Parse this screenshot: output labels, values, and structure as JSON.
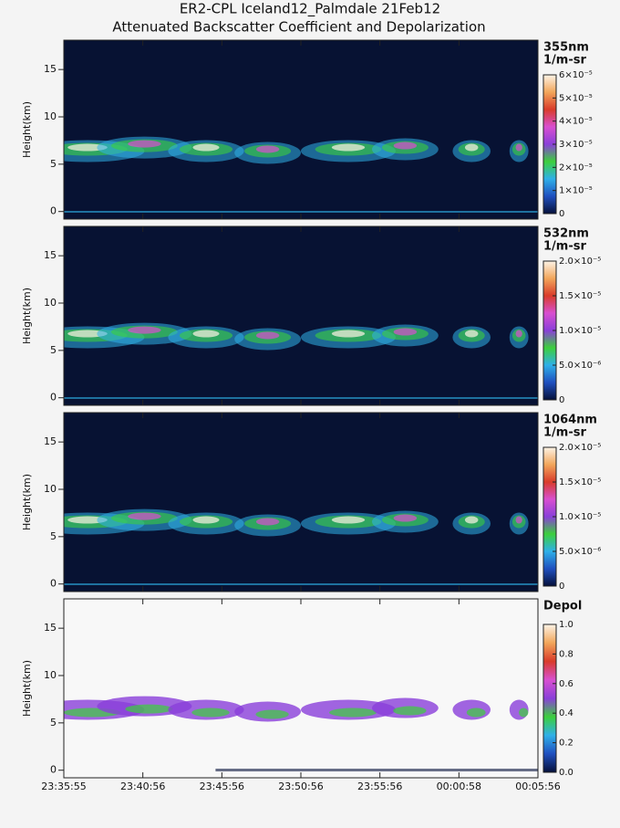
{
  "title": "ER2-CPL Iceland12_Palmdale 21Feb12",
  "subtitle": "Attenuated Backscatter Coefficient and Depolarization",
  "chart_data": [
    {
      "type": "heatmap",
      "ylabel": "Height(km)",
      "ylim": [
        -0.8,
        18.1
      ],
      "yticks": [
        0,
        5,
        10,
        15
      ],
      "colorbar_title": "355nm",
      "colorbar_units": "1/m-sr",
      "background": "#071233",
      "clim": [
        0,
        6e-05
      ],
      "cticks": [
        0,
        {
          "value": 1e-05,
          "label": "1×10⁻⁵"
        },
        {
          "value": 2e-05,
          "label": "2×10⁻⁵"
        },
        {
          "value": 3e-05,
          "label": "3×10⁻⁵"
        },
        {
          "value": 4e-05,
          "label": "4×10⁻⁵"
        },
        {
          "value": 5e-05,
          "label": "5×10⁻⁵"
        },
        {
          "value": 6e-05,
          "label": "6×10⁻⁵"
        }
      ],
      "colormap": [
        "#05103a",
        "#1f4fbf",
        "#2fb0e8",
        "#3ccf3c",
        "#8a3fd9",
        "#d84fd0",
        "#d93b2a",
        "#f2a65a",
        "#fdf3e6"
      ]
    },
    {
      "type": "heatmap",
      "ylabel": "Height(km)",
      "ylim": [
        -0.8,
        18.1
      ],
      "yticks": [
        0,
        5,
        10,
        15
      ],
      "colorbar_title": "532nm",
      "colorbar_units": "1/m-sr",
      "background": "#071233",
      "clim": [
        0,
        2e-05
      ],
      "cticks": [
        0,
        {
          "value": 5e-06,
          "label": "5.0×10⁻⁶"
        },
        {
          "value": 1e-05,
          "label": "1.0×10⁻⁵"
        },
        {
          "value": 1.5e-05,
          "label": "1.5×10⁻⁵"
        },
        {
          "value": 2e-05,
          "label": "2.0×10⁻⁵"
        }
      ],
      "colormap": [
        "#05103a",
        "#1f4fbf",
        "#2fb0e8",
        "#3ccf3c",
        "#8a3fd9",
        "#d84fd0",
        "#d93b2a",
        "#f2a65a",
        "#fdf3e6"
      ]
    },
    {
      "type": "heatmap",
      "ylabel": "Height(km)",
      "ylim": [
        -0.8,
        18.1
      ],
      "yticks": [
        0,
        5,
        10,
        15
      ],
      "colorbar_title": "1064nm",
      "colorbar_units": "1/m-sr",
      "background": "#071233",
      "clim": [
        0,
        2e-05
      ],
      "cticks": [
        0,
        {
          "value": 5e-06,
          "label": "5.0×10⁻⁶"
        },
        {
          "value": 1e-05,
          "label": "1.0×10⁻⁵"
        },
        {
          "value": 1.5e-05,
          "label": "1.5×10⁻⁵"
        },
        {
          "value": 2e-05,
          "label": "2.0×10⁻⁵"
        }
      ],
      "colormap": [
        "#05103a",
        "#1f4fbf",
        "#2fb0e8",
        "#3ccf3c",
        "#8a3fd9",
        "#d84fd0",
        "#d93b2a",
        "#f2a65a",
        "#fdf3e6"
      ]
    },
    {
      "type": "heatmap",
      "ylabel": "Height(km)",
      "ylim": [
        -0.8,
        18.1
      ],
      "yticks": [
        0,
        5,
        10,
        15
      ],
      "colorbar_title": "Depol",
      "background": "#f8f8f8",
      "clim": [
        0,
        1
      ],
      "cticks": [
        {
          "value": 0,
          "label": "0.0"
        },
        {
          "value": 0.2,
          "label": "0.2"
        },
        {
          "value": 0.4,
          "label": "0.4"
        },
        {
          "value": 0.6,
          "label": "0.6"
        },
        {
          "value": 0.8,
          "label": "0.8"
        },
        {
          "value": 1,
          "label": "1.0"
        }
      ],
      "colormap": [
        "#05103a",
        "#1f4fbf",
        "#2fb0e8",
        "#3ccf3c",
        "#8a3fd9",
        "#d84fd0",
        "#d93b2a",
        "#f2a65a",
        "#fdf3e6"
      ],
      "categories": [
        "23:35:55",
        "23:40:56",
        "23:45:56",
        "23:50:56",
        "23:55:56",
        "00:00:58",
        "00:05:56"
      ]
    }
  ]
}
